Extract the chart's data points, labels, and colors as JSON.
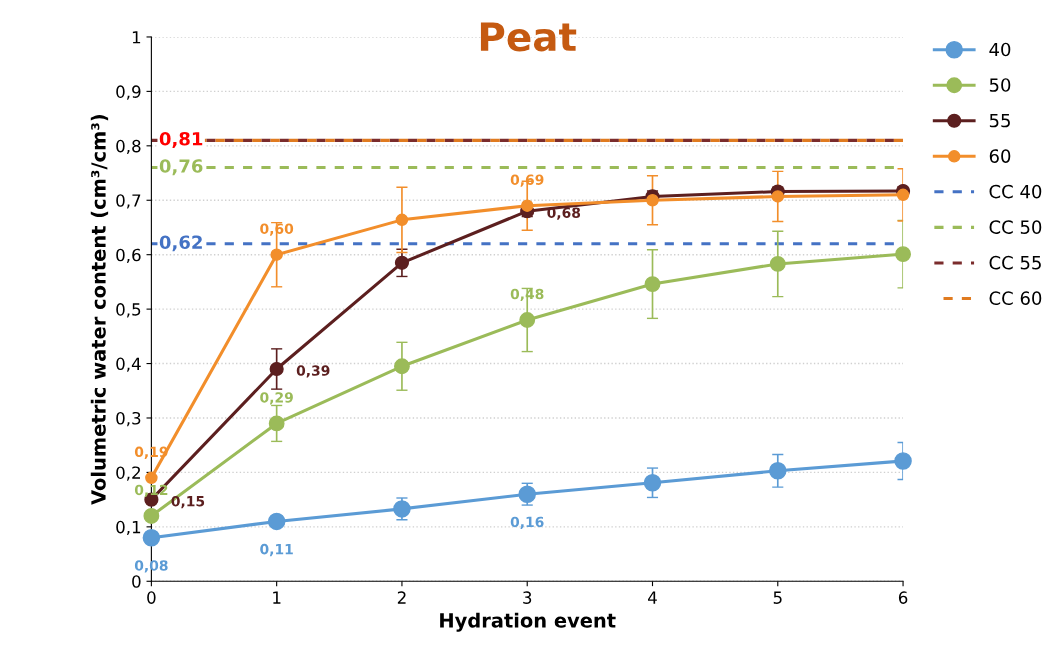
{
  "chart_data": {
    "type": "line",
    "title": "Peat",
    "xlabel": "Hydration event",
    "ylabel": "Volumetric water content (cm³/cm³)",
    "x": [
      0,
      1,
      2,
      3,
      4,
      5,
      6
    ],
    "xlim": [
      0,
      6
    ],
    "xticks": [
      0,
      1,
      2,
      3,
      4,
      5,
      6
    ],
    "ylim": [
      0,
      1
    ],
    "yticks": [
      {
        "value": 0,
        "label": "0"
      },
      {
        "value": 0.1,
        "label": "0,1"
      },
      {
        "value": 0.2,
        "label": "0,2"
      },
      {
        "value": 0.3,
        "label": "0,3"
      },
      {
        "value": 0.4,
        "label": "0,4"
      },
      {
        "value": 0.5,
        "label": "0,5"
      },
      {
        "value": 0.6,
        "label": "0,6"
      },
      {
        "value": 0.7,
        "label": "0,7"
      },
      {
        "value": 0.8,
        "label": "0,8"
      },
      {
        "value": 0.9,
        "label": "0,9"
      },
      {
        "value": 1,
        "label": "1"
      }
    ],
    "grid": "y",
    "legend": "right",
    "marker": "circle",
    "line_style": "solid",
    "series": [
      {
        "name": "40",
        "color": "#5b9bd5",
        "values": [
          0.08,
          0.11,
          0.133,
          0.16,
          0.181,
          0.203,
          0.221
        ],
        "errors": [
          null,
          0.007,
          0.02,
          0.02,
          0.027,
          0.03,
          0.034
        ],
        "value_labels": [
          "0,08",
          "0,11",
          null,
          "0,16",
          null,
          null,
          null
        ]
      },
      {
        "name": "50",
        "color": "#9bbb59",
        "values": [
          0.12,
          0.29,
          0.395,
          0.48,
          0.546,
          0.583,
          0.601
        ],
        "errors": [
          null,
          0.033,
          0.044,
          0.058,
          0.063,
          0.06,
          0.062
        ],
        "value_labels": [
          "0,12",
          "0,29",
          null,
          "0,48",
          null,
          null,
          null
        ]
      },
      {
        "name": "55",
        "color": "#5c1f1f",
        "values": [
          0.15,
          0.39,
          0.585,
          0.68,
          0.707,
          0.716,
          0.717
        ],
        "errors": [
          null,
          0.037,
          0.025,
          0.01,
          0.01,
          0.008,
          0.008
        ],
        "value_labels": [
          "0,15",
          "0,39",
          null,
          "0,68",
          null,
          null,
          null
        ]
      },
      {
        "name": "60",
        "color": "#f28e2b",
        "values": [
          0.19,
          0.6,
          0.664,
          0.69,
          0.7,
          0.707,
          0.71
        ],
        "errors": [
          null,
          0.059,
          0.06,
          0.045,
          0.045,
          0.046,
          0.048
        ],
        "value_labels": [
          "0,19",
          "0,60",
          null,
          "0,69",
          null,
          null,
          null
        ]
      }
    ],
    "ref_lines": [
      {
        "axis": "y",
        "value": 0.62,
        "label": "CC 40",
        "color": "#4472c4",
        "line_style": "dashed"
      },
      {
        "axis": "y",
        "value": 0.76,
        "label": "CC 50",
        "color": "#9bbb59",
        "line_style": "dashed"
      },
      {
        "axis": "y",
        "value": 0.81,
        "label": "CC 55",
        "color": "#7b2c2c",
        "line_style": "dashed"
      },
      {
        "axis": "y",
        "value": 0.81,
        "label": "CC 60",
        "color": "#e07b20",
        "line_style": "dashed"
      }
    ],
    "annotations": [
      {
        "text": "0,62",
        "y": 0.62
      },
      {
        "text": "0,76",
        "y": 0.76
      },
      {
        "text": "0,81",
        "y": 0.81
      }
    ]
  }
}
